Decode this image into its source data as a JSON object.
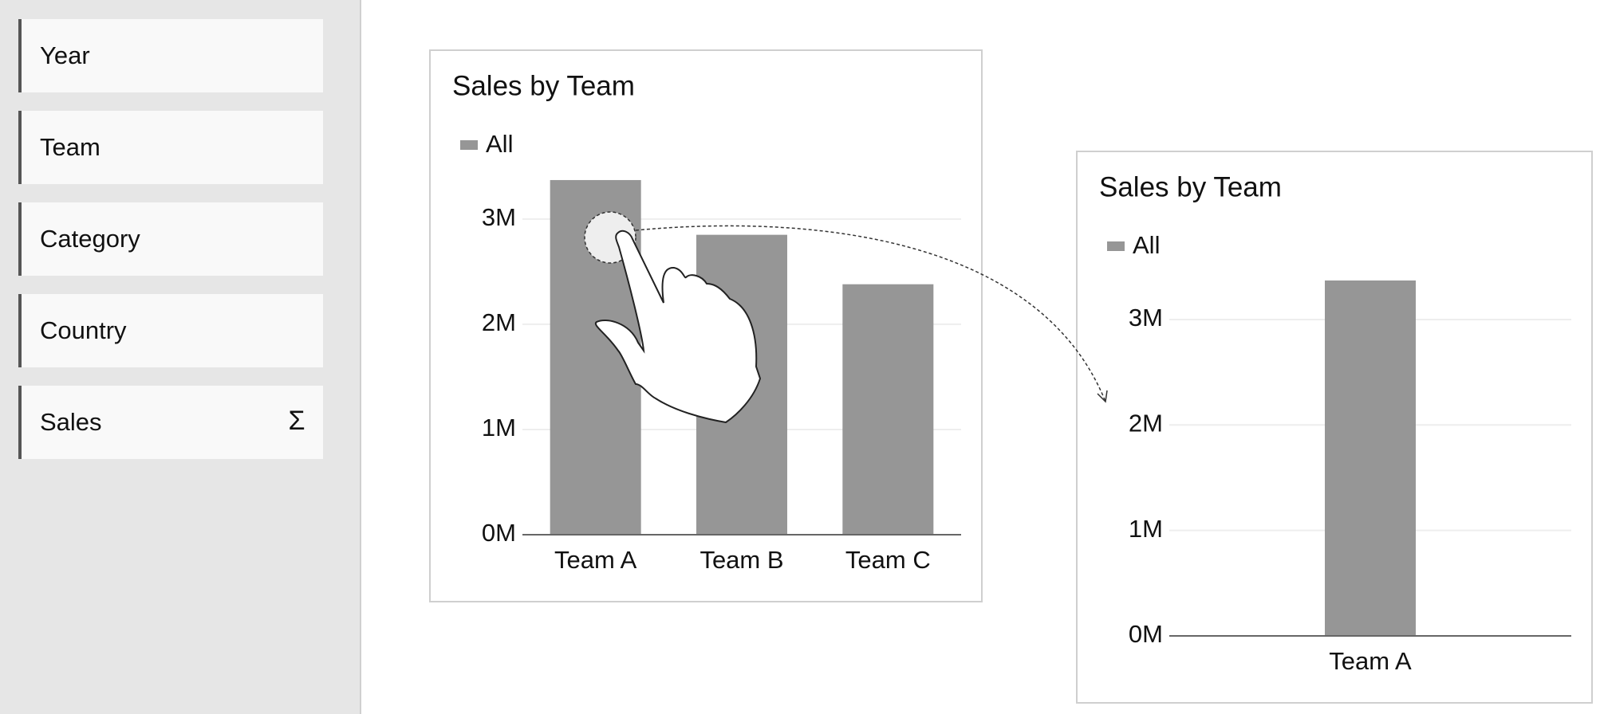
{
  "sidebar": {
    "fields": [
      "Year",
      "Team",
      "Category",
      "Country",
      "Sales"
    ],
    "sum_icon": "Σ"
  },
  "chart_data": [
    {
      "type": "bar",
      "title": "Sales by Team",
      "categories": [
        "Team A",
        "Team B",
        "Team C"
      ],
      "series": [
        {
          "name": "All",
          "color": "#969696",
          "values": [
            3370000,
            2850000,
            2380000
          ]
        }
      ],
      "ylim": [
        0,
        3400000
      ],
      "yticks": [
        {
          "value": 0,
          "label": "0M"
        },
        {
          "value": 1000000,
          "label": "1M"
        },
        {
          "value": 2000000,
          "label": "2M"
        },
        {
          "value": 3000000,
          "label": "3M"
        }
      ],
      "grid": true
    },
    {
      "type": "bar",
      "title": "Sales by Team",
      "categories": [
        "Team A"
      ],
      "series": [
        {
          "name": "All",
          "color": "#969696",
          "values": [
            3370000
          ]
        }
      ],
      "ylim": [
        0,
        3400000
      ],
      "yticks": [
        {
          "value": 0,
          "label": "0M"
        },
        {
          "value": 1000000,
          "label": "1M"
        },
        {
          "value": 2000000,
          "label": "2M"
        },
        {
          "value": 3000000,
          "label": "3M"
        }
      ],
      "grid": true
    }
  ]
}
